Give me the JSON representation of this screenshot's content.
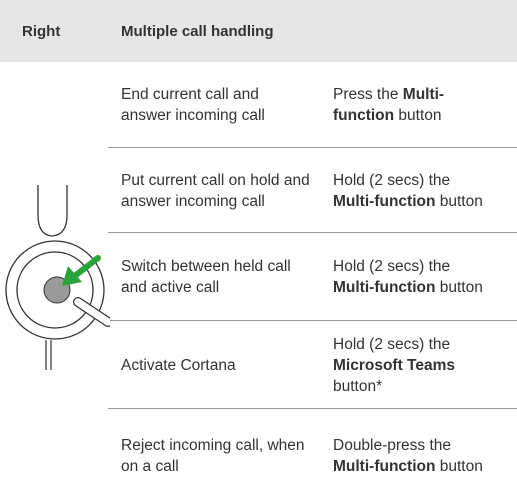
{
  "header": {
    "col1": "Right",
    "col2": "Multiple call handling"
  },
  "rows": [
    {
      "action": "End current call and answer incoming call",
      "instruction": [
        {
          "text": "Press the ",
          "bold": false
        },
        {
          "text": "Multi-function",
          "bold": true
        },
        {
          "text": " button",
          "bold": false
        }
      ]
    },
    {
      "action": "Put current call on hold and answer incoming call",
      "instruction": [
        {
          "text": "Hold (2 secs) the ",
          "bold": false
        },
        {
          "text": "Multi-function",
          "bold": true
        },
        {
          "text": " button",
          "bold": false
        }
      ]
    },
    {
      "action": "Switch between held call and active call",
      "instruction": [
        {
          "text": "Hold (2 secs) the ",
          "bold": false
        },
        {
          "text": "Multi-function",
          "bold": true
        },
        {
          "text": " button",
          "bold": false
        }
      ]
    },
    {
      "action": "Activate Cortana",
      "instruction": [
        {
          "text": "Hold (2 secs) the ",
          "bold": false
        },
        {
          "text": "Microsoft Teams",
          "bold": true
        },
        {
          "text": " button*",
          "bold": false
        }
      ]
    },
    {
      "action": "Reject incoming call, when on a call",
      "instruction": [
        {
          "text": "Double-press the ",
          "bold": false
        },
        {
          "text": "Multi-function",
          "bold": true
        },
        {
          "text": " button",
          "bold": false
        }
      ]
    }
  ]
}
